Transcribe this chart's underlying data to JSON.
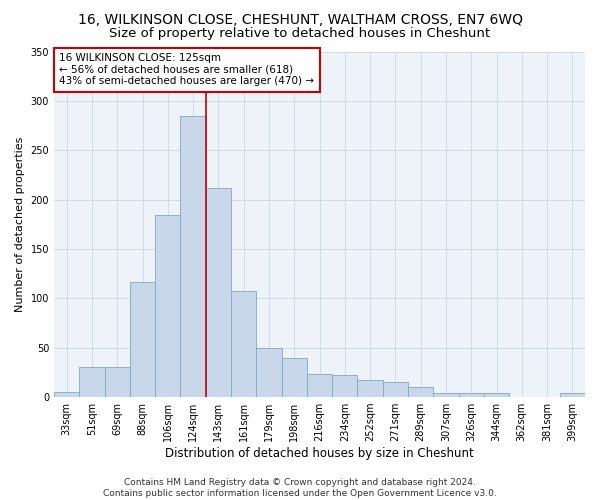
{
  "title": "16, WILKINSON CLOSE, CHESHUNT, WALTHAM CROSS, EN7 6WQ",
  "subtitle": "Size of property relative to detached houses in Cheshunt",
  "xlabel": "Distribution of detached houses by size in Cheshunt",
  "ylabel": "Number of detached properties",
  "categories": [
    "33sqm",
    "51sqm",
    "69sqm",
    "88sqm",
    "106sqm",
    "124sqm",
    "143sqm",
    "161sqm",
    "179sqm",
    "198sqm",
    "216sqm",
    "234sqm",
    "252sqm",
    "271sqm",
    "289sqm",
    "307sqm",
    "326sqm",
    "344sqm",
    "362sqm",
    "381sqm",
    "399sqm"
  ],
  "values": [
    5,
    30,
    30,
    117,
    184,
    285,
    212,
    107,
    50,
    40,
    23,
    22,
    17,
    15,
    10,
    4,
    4,
    4,
    0,
    0,
    4
  ],
  "bar_color": "#c8d8ea",
  "bar_edge_color": "#7aaac8",
  "vline_color": "#cc0000",
  "vline_x_index": 5.5,
  "annotation_box_color": "#ffffff",
  "annotation_box_edge": "#cc0000",
  "annotation_label": "16 WILKINSON CLOSE: 125sqm",
  "annotation_line1": "← 56% of detached houses are smaller (618)",
  "annotation_line2": "43% of semi-detached houses are larger (470) →",
  "ylim": [
    0,
    350
  ],
  "yticks": [
    0,
    50,
    100,
    150,
    200,
    250,
    300,
    350
  ],
  "grid_color": "#c8d8e8",
  "bg_color": "#eef3fa",
  "footer1": "Contains HM Land Registry data © Crown copyright and database right 2024.",
  "footer2": "Contains public sector information licensed under the Open Government Licence v3.0.",
  "title_fontsize": 10,
  "subtitle_fontsize": 9.5,
  "xlabel_fontsize": 8.5,
  "ylabel_fontsize": 8,
  "tick_fontsize": 7,
  "annotation_fontsize": 7.5,
  "footer_fontsize": 6.5
}
